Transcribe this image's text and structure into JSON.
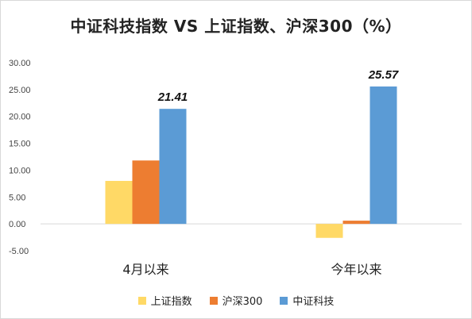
{
  "chart_data": {
    "type": "bar",
    "title": "中证科技指数 VS 上证指数、沪深300（%）",
    "categories": [
      "4月以来",
      "今年以来"
    ],
    "series": [
      {
        "name": "上证指数",
        "values": [
          8.0,
          -2.6
        ],
        "color": "#FFD966"
      },
      {
        "name": "沪深300",
        "values": [
          11.8,
          0.6
        ],
        "color": "#ED7D31"
      },
      {
        "name": "中证科技",
        "values": [
          21.41,
          25.57
        ],
        "color": "#5B9BD5"
      }
    ],
    "data_labels": [
      {
        "series": "中证科技",
        "category": "4月以来",
        "text": "21.41",
        "value": 21.41
      },
      {
        "series": "中证科技",
        "category": "今年以来",
        "text": "25.57",
        "value": 25.57
      }
    ],
    "y_ticks": [
      "30.00",
      "25.00",
      "20.00",
      "15.00",
      "10.00",
      "5.00",
      "0.00",
      "-5.00"
    ],
    "ylim": [
      -5,
      30
    ],
    "grid": false,
    "legend_position": "bottom",
    "xlabel": "",
    "ylabel": ""
  }
}
